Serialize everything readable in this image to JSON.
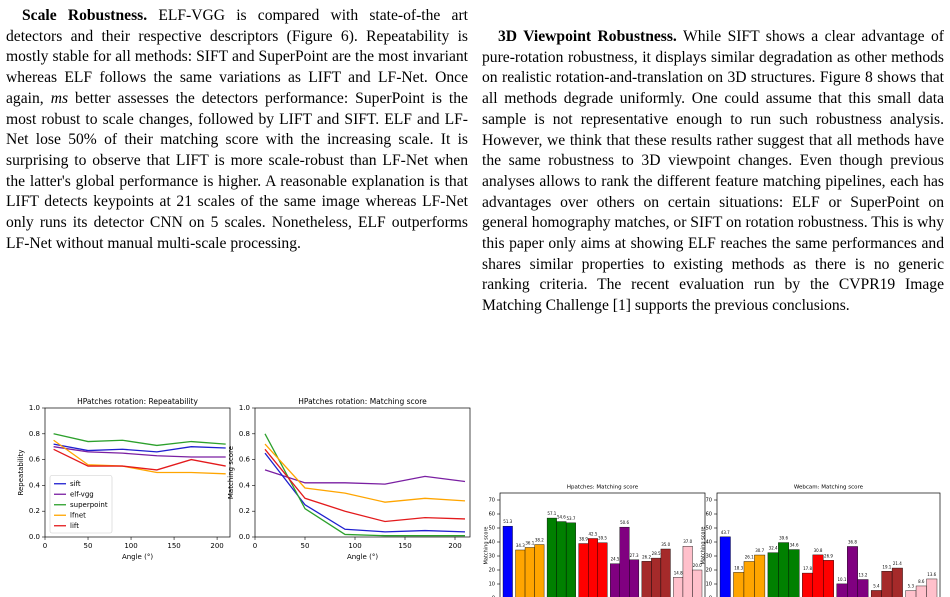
{
  "text_columns": [
    {
      "heading": "Scale Robustness.",
      "text": [
        "ELF-VGG is compared with state-of-the art detectors and their respective descriptors (Figure 6). Repeatability is mostly stable for all methods: SIFT and SuperPoint are the most invariant whereas ELF follows the same variations as LIFT and LF-Net. Once again, ",
        "ms",
        " better assesses the detectors performance: SuperPoint is the most robust to scale changes, followed by LIFT and SIFT. ELF and LF-Net lose 50% of their matching score with the increasing scale. It is surprising to observe that LIFT is more scale-robust than LF-Net when the latter's global performance is higher. A reasonable explanation is that LIFT detects keypoints at 21 scales of the same image whereas LF-Net only runs its detector CNN on 5 scales. Nonetheless, ELF outperforms LF-Net without manual multi-scale processing."
      ]
    },
    {
      "heading": "3D Viewpoint Robustness.",
      "text": [
        "While SIFT shows a clear advantage of pure-rotation robustness, it displays similar degradation as other methods on realistic rotation-and-translation on 3D structures. Figure 8 shows that all methods degrade uniformly. One could assume that this small data sample is not representative enough to run such robustness analysis. However, we think that these results rather suggest that all methods have the same robustness to 3D viewpoint changes. Even though previous analyses allows to rank the different feature matching pipelines, each has advantages over others on certain situations: ELF or SuperPoint on general homography matches, or SIFT on rotation robustness. This is why this paper only aims at showing ELF reaches the same performances and shares similar properties to existing methods as there is no generic ranking criteria. The recent evaluation run by the CVPR19 Image Matching Challenge [1] supports the previous conclusions."
      ]
    }
  ],
  "chart_data": [
    {
      "type": "line",
      "title": "HPatches rotation: Repeatability",
      "x_label": "Angle (°)",
      "y_label": "Repeatability",
      "x": [
        10,
        50,
        90,
        130,
        170,
        210
      ],
      "xlim": [
        0,
        215
      ],
      "xticks": [
        0,
        50,
        100,
        150,
        200
      ],
      "ylim": [
        0,
        1
      ],
      "yticks": [
        {
          "value": 0,
          "label": "0.0"
        },
        {
          "value": 0.2,
          "label": "0.2"
        },
        {
          "value": 0.4,
          "label": "0.4"
        },
        {
          "value": 0.6,
          "label": "0.6"
        },
        {
          "value": 0.8,
          "label": "0.8"
        },
        {
          "value": 1,
          "label": "1.0"
        }
      ],
      "legend": "lower left",
      "series": [
        {
          "name": "sift",
          "color": "#1f1fcf",
          "values": [
            0.72,
            0.67,
            0.68,
            0.66,
            0.7,
            0.69
          ]
        },
        {
          "name": "elf-vgg",
          "color": "#7a1fa2",
          "values": [
            0.7,
            0.66,
            0.65,
            0.63,
            0.62,
            0.62
          ]
        },
        {
          "name": "superpoint",
          "color": "#2ca02c",
          "values": [
            0.8,
            0.74,
            0.75,
            0.71,
            0.74,
            0.72
          ]
        },
        {
          "name": "lfnet",
          "color": "#ffa500",
          "values": [
            0.75,
            0.56,
            0.55,
            0.5,
            0.5,
            0.49
          ]
        },
        {
          "name": "lift",
          "color": "#e31a1c",
          "values": [
            0.68,
            0.55,
            0.55,
            0.52,
            0.6,
            0.55
          ]
        }
      ]
    },
    {
      "type": "line",
      "title": "HPatches rotation: Matching score",
      "x_label": "Angle (°)",
      "y_label": "Matching score",
      "x": [
        10,
        50,
        90,
        130,
        170,
        210
      ],
      "xlim": [
        0,
        215
      ],
      "xticks": [
        0,
        50,
        100,
        150,
        200
      ],
      "ylim": [
        0,
        1
      ],
      "yticks": [
        {
          "value": 0,
          "label": "0.0"
        },
        {
          "value": 0.2,
          "label": "0.2"
        },
        {
          "value": 0.4,
          "label": "0.4"
        },
        {
          "value": 0.6,
          "label": "0.6"
        },
        {
          "value": 0.8,
          "label": "0.8"
        },
        {
          "value": 1,
          "label": "1.0"
        }
      ],
      "series": [
        {
          "color": "#7a1fa2",
          "values": [
            0.52,
            0.42,
            0.42,
            0.41,
            0.47,
            0.43
          ]
        },
        {
          "color": "#1f1fcf",
          "values": [
            0.65,
            0.25,
            0.06,
            0.04,
            0.05,
            0.04
          ]
        },
        {
          "color": "#2ca02c",
          "values": [
            0.8,
            0.22,
            0.02,
            0.01,
            0.01,
            0.01
          ]
        },
        {
          "color": "#ffa500",
          "values": [
            0.72,
            0.38,
            0.34,
            0.27,
            0.3,
            0.28
          ]
        },
        {
          "color": "#e31a1c",
          "values": [
            0.68,
            0.3,
            0.2,
            0.12,
            0.15,
            0.14
          ]
        }
      ]
    },
    {
      "type": "bar",
      "title": "Hpatches: Matching score",
      "y_label": "Matching score",
      "ylim": [
        0,
        75
      ],
      "yticks": [
        0,
        10,
        20,
        30,
        40,
        50,
        60,
        70
      ],
      "values": [
        51.3,
        34.3,
        36.1,
        38.2,
        57.1,
        54.6,
        53.7,
        38.9,
        42.5,
        39.5,
        24.5,
        50.6,
        27.3,
        26.2,
        28.5,
        35.0,
        14.8,
        37.0,
        20.0
      ],
      "value_labels": [
        "51.3",
        "34.3",
        "36.1",
        "38.2",
        "57.1",
        "54.6",
        "53.7",
        "38.9",
        "42.5",
        "39.5",
        "24.5",
        "50.6",
        "27.3",
        "26.2",
        "28.5",
        "35.0",
        "14.8",
        "37.0",
        "20.0"
      ],
      "colors": [
        "#0000ff",
        "#ffa500",
        "#ffa500",
        "#ffa500",
        "#008000",
        "#008000",
        "#008000",
        "#ff0000",
        "#ff0000",
        "#ff0000",
        "#800080",
        "#800080",
        "#800080",
        "#a52a2a",
        "#a52a2a",
        "#a52a2a",
        "#ffc0cb",
        "#ffc0cb",
        "#ffc0cb"
      ]
    },
    {
      "type": "bar",
      "title": "Webcam: Matching score",
      "y_label": "Matching score",
      "ylim": [
        0,
        75
      ],
      "yticks": [
        0,
        10,
        20,
        30,
        40,
        50,
        60,
        70
      ],
      "values": [
        43.7,
        18.3,
        26.1,
        30.7,
        32.4,
        39.6,
        34.6,
        17.8,
        30.8,
        26.9,
        10.1,
        36.8,
        13.2,
        5.4,
        19.1,
        21.4,
        5.3,
        8.6,
        13.6
      ],
      "value_labels": [
        "43.7",
        "18.3",
        "26.1",
        "30.7",
        "32.4",
        "39.6",
        "34.6",
        "17.8",
        "30.8",
        "26.9",
        "10.1",
        "36.8",
        "13.2",
        "5.4",
        "19.1",
        "21.4",
        "5.3",
        "8.6",
        "13.6"
      ],
      "colors": [
        "#0000ff",
        "#ffa500",
        "#ffa500",
        "#ffa500",
        "#008000",
        "#008000",
        "#008000",
        "#ff0000",
        "#ff0000",
        "#ff0000",
        "#800080",
        "#800080",
        "#800080",
        "#a52a2a",
        "#a52a2a",
        "#a52a2a",
        "#ffc0cb",
        "#ffc0cb",
        "#ffc0cb"
      ]
    }
  ]
}
